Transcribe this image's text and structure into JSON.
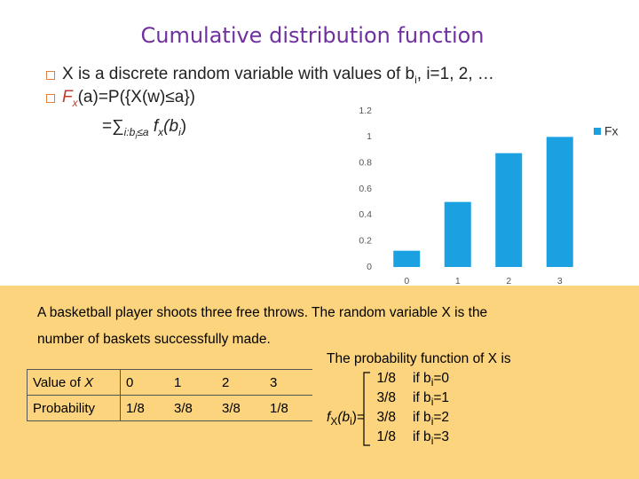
{
  "title": "Cumulative distribution function",
  "bullets": [
    {
      "parts": [
        "X is a discrete random variable with values of b",
        "i",
        ", i=1, 2, …"
      ]
    },
    {
      "parts": [
        "F",
        "x",
        "(a)=P({X(w)≤a})"
      ]
    }
  ],
  "sum_line": [
    "=∑",
    "i:b",
    "i",
    "≤a",
    "f",
    "x",
    "(b",
    "i",
    ")"
  ],
  "chart_data": {
    "type": "bar",
    "categories": [
      "0",
      "1",
      "2",
      "3"
    ],
    "series": [
      {
        "name": "Fx",
        "color": "#1ba1e2",
        "values": [
          0.125,
          0.5,
          0.875,
          1
        ]
      }
    ],
    "ylim": [
      0,
      1.2
    ],
    "yticks": [
      0,
      0.2,
      0.4,
      0.6,
      0.8,
      1,
      1.2
    ],
    "grid": false,
    "legend": "right"
  },
  "example": {
    "text": [
      "A basketball player shoots three free throws. The random variable X is the",
      "number of baskets successfully made."
    ],
    "table": {
      "rows": [
        [
          [
            "Value of ",
            "X"
          ],
          "0",
          "1",
          "2",
          "3"
        ],
        [
          [
            "Probability"
          ],
          "1/8",
          "3/8",
          "3/8",
          "1/8"
        ]
      ]
    },
    "pmf": {
      "heading": "The probability function of X is",
      "lhs": [
        "f",
        "X",
        "(b",
        "i",
        ")="
      ],
      "cases": [
        {
          "value": "1/8",
          "condition": [
            "if b",
            "i",
            "=0"
          ]
        },
        {
          "value": "3/8",
          "condition": [
            "if b",
            "i",
            "=1"
          ]
        },
        {
          "value": "3/8",
          "condition": [
            "if b",
            "i",
            "=2"
          ]
        },
        {
          "value": "1/8",
          "condition": [
            "if b",
            "i",
            "=3"
          ]
        }
      ]
    }
  }
}
